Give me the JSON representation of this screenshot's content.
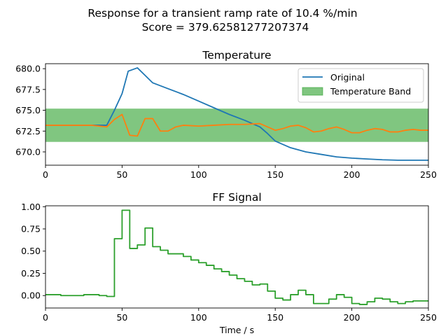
{
  "figure": {
    "suptitle_line1": "Response for a transient ramp rate of 10.4 %/min",
    "suptitle_line2": "Score = 379.62581277207374"
  },
  "colors": {
    "original": "#1f77b4",
    "response": "#ff7f0e",
    "band": "#2ca02c",
    "ff_signal": "#2ca02c"
  },
  "chart_data": [
    {
      "type": "line",
      "title": "Temperature",
      "xlabel": "",
      "ylabel": "",
      "xlim": [
        0,
        250
      ],
      "ylim": [
        668.4,
        680.6
      ],
      "xticks": [
        0,
        50,
        100,
        150,
        200,
        250
      ],
      "yticks": [
        670.0,
        672.5,
        675.0,
        677.5,
        680.0
      ],
      "ytick_labels": [
        "670.0",
        "672.5",
        "675.0",
        "677.5",
        "680.0"
      ],
      "grid": false,
      "legend_position": "upper right",
      "band": {
        "name": "Temperature Band",
        "y_low": 671.2,
        "y_high": 675.2
      },
      "series": [
        {
          "name": "Original",
          "x": [
            0,
            10,
            20,
            30,
            40,
            45,
            50,
            54,
            60,
            65,
            70,
            80,
            90,
            100,
            110,
            120,
            130,
            140,
            145,
            150,
            160,
            170,
            180,
            190,
            200,
            210,
            220,
            230,
            240,
            250
          ],
          "y": [
            673.2,
            673.2,
            673.2,
            673.2,
            673.2,
            675.0,
            677.0,
            679.7,
            680.1,
            679.2,
            678.3,
            677.6,
            676.9,
            676.1,
            675.3,
            674.5,
            673.8,
            673.0,
            672.2,
            671.3,
            670.5,
            670.0,
            669.7,
            669.4,
            669.25,
            669.15,
            669.05,
            669.0,
            669.0,
            669.0
          ]
        },
        {
          "name": "",
          "x": [
            0,
            10,
            20,
            30,
            40,
            45,
            50,
            55,
            60,
            65,
            70,
            75,
            80,
            85,
            90,
            100,
            110,
            120,
            130,
            140,
            145,
            150,
            155,
            160,
            165,
            170,
            175,
            180,
            185,
            190,
            195,
            200,
            205,
            210,
            215,
            220,
            225,
            230,
            235,
            240,
            245,
            250
          ],
          "y": [
            673.2,
            673.2,
            673.2,
            673.2,
            673.0,
            673.9,
            674.5,
            672.0,
            671.9,
            674.0,
            674.0,
            672.5,
            672.5,
            673.0,
            673.2,
            673.1,
            673.2,
            673.3,
            673.3,
            673.4,
            673.0,
            672.6,
            672.8,
            673.1,
            673.2,
            672.9,
            672.4,
            672.5,
            672.8,
            673.0,
            672.7,
            672.3,
            672.3,
            672.6,
            672.8,
            672.7,
            672.4,
            672.4,
            672.6,
            672.7,
            672.6,
            672.6
          ]
        }
      ]
    },
    {
      "type": "line",
      "title": "FF Signal",
      "xlabel": "Time / s",
      "ylabel": "",
      "xlim": [
        0,
        250
      ],
      "ylim": [
        -0.14,
        1.01
      ],
      "xticks": [
        0,
        50,
        100,
        150,
        200,
        250
      ],
      "yticks": [
        0.0,
        0.25,
        0.5,
        0.75,
        1.0
      ],
      "ytick_labels": [
        "0.00",
        "0.25",
        "0.50",
        "0.75",
        "1.00"
      ],
      "grid": false,
      "step": "post",
      "series": [
        {
          "name": "",
          "x": [
            0,
            10,
            25,
            35,
            40,
            45,
            50,
            55,
            60,
            65,
            70,
            75,
            80,
            90,
            95,
            100,
            105,
            110,
            115,
            120,
            125,
            130,
            135,
            140,
            145,
            150,
            155,
            160,
            165,
            170,
            175,
            180,
            185,
            190,
            195,
            200,
            205,
            210,
            215,
            220,
            225,
            230,
            235,
            240,
            245,
            250
          ],
          "y": [
            0.01,
            0.0,
            0.01,
            0.0,
            -0.01,
            0.64,
            0.96,
            0.53,
            0.57,
            0.76,
            0.55,
            0.51,
            0.47,
            0.44,
            0.4,
            0.37,
            0.34,
            0.3,
            0.27,
            0.23,
            0.19,
            0.16,
            0.12,
            0.13,
            0.05,
            -0.03,
            -0.05,
            0.01,
            0.06,
            0.01,
            -0.09,
            -0.09,
            -0.04,
            0.01,
            -0.02,
            -0.09,
            -0.1,
            -0.07,
            -0.03,
            -0.04,
            -0.07,
            -0.09,
            -0.07,
            -0.06,
            -0.06,
            -0.06
          ]
        }
      ]
    }
  ]
}
